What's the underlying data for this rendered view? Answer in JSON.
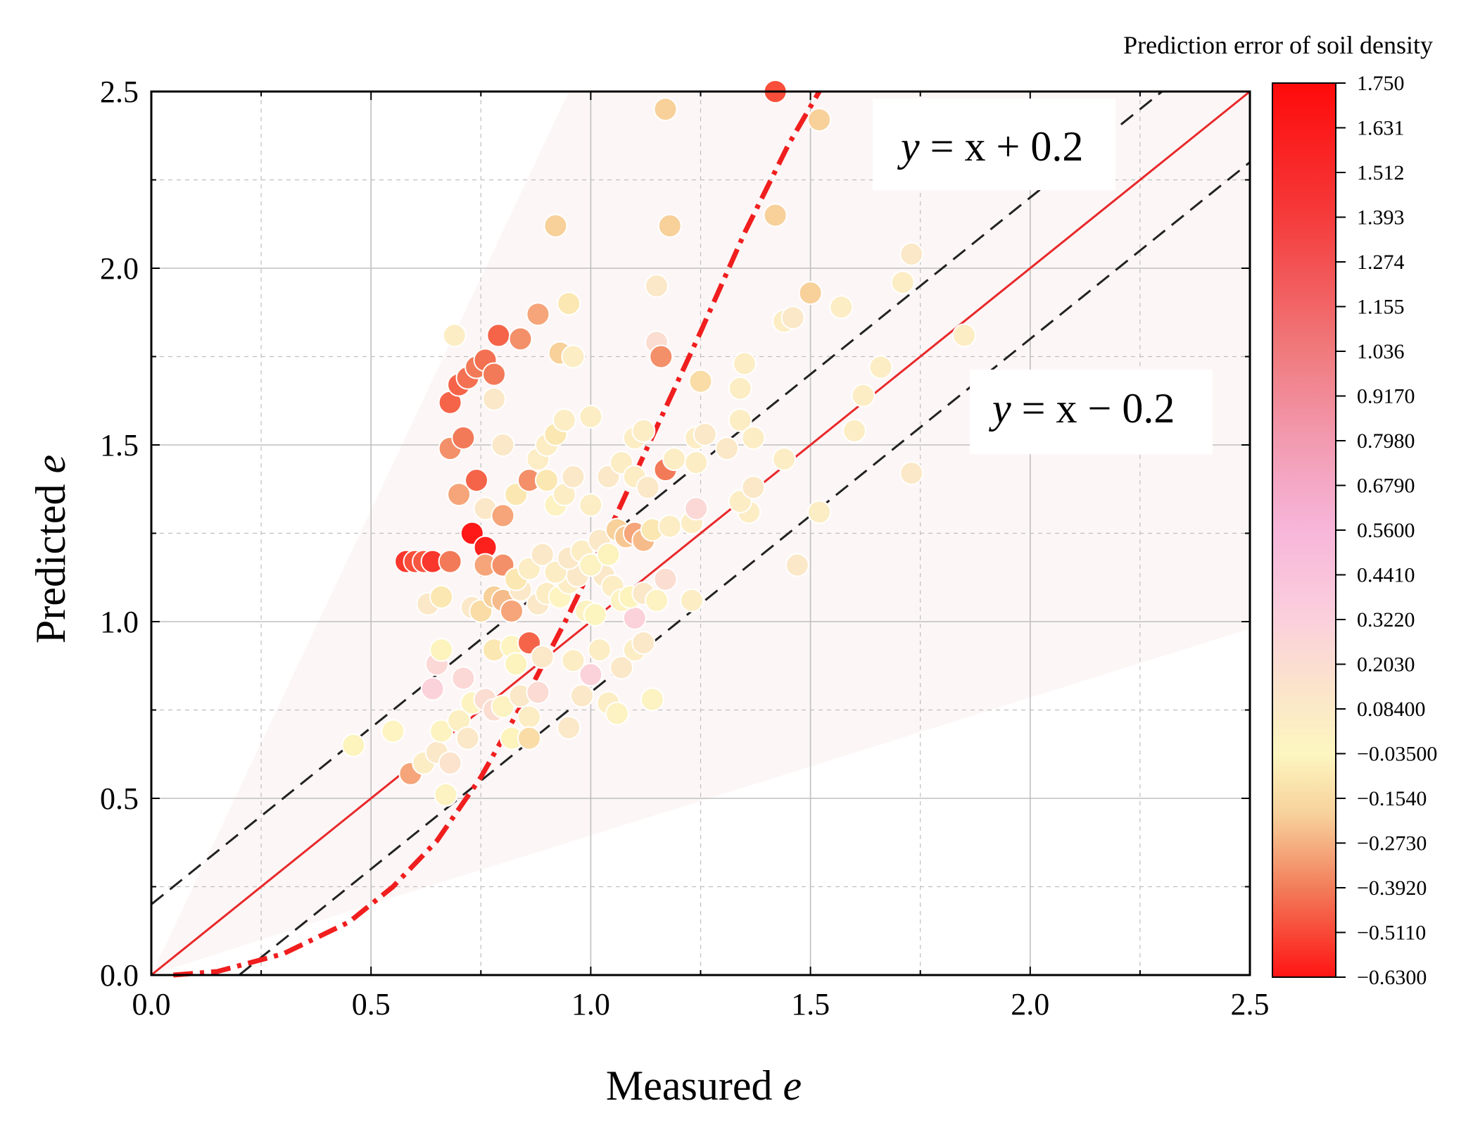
{
  "chart_data": {
    "type": "scatter",
    "xlabel": "Measured",
    "xlabel_var": "e",
    "ylabel": "Predicted",
    "ylabel_var": "e",
    "xlim": [
      0,
      2.5
    ],
    "ylim": [
      0,
      2.5
    ],
    "x_ticks": [
      "0.0",
      "0.5",
      "1.0",
      "1.5",
      "2.0",
      "2.5"
    ],
    "y_ticks": [
      "0.0",
      "0.5",
      "1.0",
      "1.5",
      "2.0",
      "2.5"
    ],
    "grid": true,
    "lines": [
      {
        "name": "y = x",
        "slope": 1,
        "intercept": 0,
        "style": "solid",
        "color": "#e8282a"
      },
      {
        "name": "y = x + 0.2",
        "slope": 1,
        "intercept": 0.2,
        "style": "dashed",
        "color": "#222222"
      },
      {
        "name": "y = x - 0.2",
        "slope": 1,
        "intercept": -0.2,
        "style": "dashed",
        "color": "#222222"
      }
    ],
    "trend_curve": [
      [
        0.05,
        0.0
      ],
      [
        0.15,
        0.01
      ],
      [
        0.3,
        0.06
      ],
      [
        0.45,
        0.15
      ],
      [
        0.55,
        0.25
      ],
      [
        0.65,
        0.38
      ],
      [
        0.75,
        0.56
      ],
      [
        0.85,
        0.78
      ],
      [
        0.95,
        1.02
      ],
      [
        1.05,
        1.28
      ],
      [
        1.15,
        1.55
      ],
      [
        1.25,
        1.82
      ],
      [
        1.35,
        2.1
      ],
      [
        1.45,
        2.35
      ],
      [
        1.52,
        2.5
      ]
    ],
    "annotations": [
      {
        "text_var": "y",
        "text_rest": " = x + 0.2"
      },
      {
        "text_var": "y",
        "text_rest": " = x − 0.2"
      }
    ],
    "colorbar": {
      "title": "Prediction error of soil density",
      "min": -0.63,
      "max": 1.75,
      "ticks": [
        "1.750",
        "1.631",
        "1.512",
        "1.393",
        "1.274",
        "1.155",
        "1.036",
        "0.9170",
        "0.7980",
        "0.6790",
        "0.5600",
        "0.4410",
        "0.3220",
        "0.2030",
        "0.08400",
        "−0.03500",
        "−0.1540",
        "−0.2730",
        "−0.3920",
        "−0.5110",
        "−0.6300"
      ],
      "stops": [
        {
          "v": 1.75,
          "color": "#ff0a0a"
        },
        {
          "v": 1.4,
          "color": "#f53a3a"
        },
        {
          "v": 1.05,
          "color": "#f0787a"
        },
        {
          "v": 0.8,
          "color": "#f29ab0"
        },
        {
          "v": 0.56,
          "color": "#f7b6da"
        },
        {
          "v": 0.32,
          "color": "#fbd0dc"
        },
        {
          "v": 0.1,
          "color": "#fbe8c8"
        },
        {
          "v": -0.035,
          "color": "#fdf6c0"
        },
        {
          "v": -0.2,
          "color": "#f7d09a"
        },
        {
          "v": -0.4,
          "color": "#f27a58"
        },
        {
          "v": -0.63,
          "color": "#ff1414"
        }
      ]
    },
    "points": [
      [
        0.46,
        0.65,
        -0.05
      ],
      [
        0.55,
        0.69,
        -0.02
      ],
      [
        0.59,
        0.57,
        -0.3
      ],
      [
        0.62,
        0.6,
        0.05
      ],
      [
        0.65,
        0.63,
        0.1
      ],
      [
        0.66,
        0.69,
        -0.01
      ],
      [
        0.67,
        0.51,
        0.0
      ],
      [
        0.68,
        0.6,
        0.15
      ],
      [
        0.7,
        0.72,
        0.02
      ],
      [
        0.72,
        0.67,
        0.1
      ],
      [
        0.73,
        0.77,
        -0.01
      ],
      [
        0.76,
        0.78,
        0.2
      ],
      [
        0.78,
        0.75,
        0.2
      ],
      [
        0.8,
        0.76,
        0.0
      ],
      [
        0.82,
        0.67,
        -0.05
      ],
      [
        0.84,
        0.79,
        0.1
      ],
      [
        0.86,
        0.73,
        0.05
      ],
      [
        0.88,
        0.8,
        0.22
      ],
      [
        0.86,
        0.67,
        -0.15
      ],
      [
        0.71,
        0.84,
        0.25
      ],
      [
        0.64,
        0.81,
        0.3
      ],
      [
        0.65,
        0.88,
        0.25
      ],
      [
        0.66,
        0.92,
        -0.05
      ],
      [
        0.78,
        0.92,
        -0.1
      ],
      [
        0.82,
        0.93,
        -0.02
      ],
      [
        0.83,
        0.88,
        -0.05
      ],
      [
        0.86,
        0.94,
        -0.45
      ],
      [
        0.89,
        0.9,
        0.1
      ],
      [
        0.96,
        0.89,
        0.05
      ],
      [
        0.98,
        0.79,
        0.1
      ],
      [
        1.0,
        0.85,
        0.3
      ],
      [
        1.02,
        0.92,
        0.05
      ],
      [
        1.04,
        0.77,
        0.05
      ],
      [
        1.06,
        0.74,
        0.0
      ],
      [
        1.07,
        0.87,
        0.1
      ],
      [
        1.1,
        0.92,
        0.05
      ],
      [
        1.12,
        0.94,
        0.1
      ],
      [
        1.14,
        0.78,
        0.0
      ],
      [
        1.1,
        1.01,
        0.3
      ],
      [
        0.95,
        0.7,
        0.1
      ],
      [
        0.63,
        1.05,
        0.1
      ],
      [
        0.66,
        1.07,
        -0.1
      ],
      [
        0.73,
        1.04,
        0.1
      ],
      [
        0.75,
        1.03,
        -0.15
      ],
      [
        0.78,
        1.07,
        -0.2
      ],
      [
        0.8,
        1.06,
        -0.25
      ],
      [
        0.82,
        1.03,
        -0.3
      ],
      [
        0.84,
        1.09,
        0.1
      ],
      [
        0.88,
        1.05,
        0.1
      ],
      [
        0.9,
        1.08,
        0.05
      ],
      [
        0.93,
        1.07,
        -0.02
      ],
      [
        0.95,
        1.11,
        0.05
      ],
      [
        0.97,
        1.13,
        0.1
      ],
      [
        0.99,
        1.03,
        0.0
      ],
      [
        1.01,
        1.02,
        -0.03
      ],
      [
        1.03,
        1.13,
        0.1
      ],
      [
        1.05,
        1.1,
        0.05
      ],
      [
        1.07,
        1.06,
        0.0
      ],
      [
        1.09,
        1.07,
        -0.05
      ],
      [
        1.12,
        1.08,
        0.1
      ],
      [
        1.15,
        1.06,
        0.0
      ],
      [
        1.17,
        1.12,
        0.2
      ],
      [
        1.23,
        1.06,
        0.05
      ],
      [
        0.58,
        1.17,
        -0.55
      ],
      [
        0.6,
        1.17,
        -0.5
      ],
      [
        0.62,
        1.17,
        -0.48
      ],
      [
        0.64,
        1.17,
        -0.55
      ],
      [
        0.68,
        1.17,
        -0.4
      ],
      [
        0.73,
        1.25,
        -0.62
      ],
      [
        0.76,
        1.21,
        -0.6
      ],
      [
        0.76,
        1.16,
        -0.3
      ],
      [
        0.8,
        1.16,
        -0.35
      ],
      [
        0.83,
        1.12,
        -0.1
      ],
      [
        0.86,
        1.15,
        0.05
      ],
      [
        0.89,
        1.19,
        0.1
      ],
      [
        0.92,
        1.14,
        0.05
      ],
      [
        0.95,
        1.18,
        0.1
      ],
      [
        0.98,
        1.2,
        0.05
      ],
      [
        1.0,
        1.16,
        0.0
      ],
      [
        1.02,
        1.23,
        0.1
      ],
      [
        1.04,
        1.19,
        -0.05
      ],
      [
        1.06,
        1.26,
        -0.2
      ],
      [
        1.08,
        1.24,
        -0.22
      ],
      [
        1.1,
        1.25,
        -0.3
      ],
      [
        1.12,
        1.23,
        -0.25
      ],
      [
        1.14,
        1.26,
        -0.1
      ],
      [
        1.18,
        1.27,
        0.05
      ],
      [
        1.23,
        1.28,
        0.05
      ],
      [
        1.24,
        1.32,
        0.25
      ],
      [
        1.36,
        1.31,
        0.05
      ],
      [
        1.52,
        1.31,
        0.05
      ],
      [
        0.7,
        1.36,
        -0.3
      ],
      [
        0.74,
        1.4,
        -0.45
      ],
      [
        0.76,
        1.32,
        0.1
      ],
      [
        0.8,
        1.3,
        -0.3
      ],
      [
        0.83,
        1.36,
        -0.1
      ],
      [
        0.86,
        1.4,
        -0.35
      ],
      [
        0.88,
        1.46,
        0.05
      ],
      [
        0.9,
        1.4,
        -0.1
      ],
      [
        0.92,
        1.33,
        0.0
      ],
      [
        0.94,
        1.36,
        0.05
      ],
      [
        0.96,
        1.41,
        0.1
      ],
      [
        1.0,
        1.33,
        0.05
      ],
      [
        1.04,
        1.41,
        0.1
      ],
      [
        1.07,
        1.45,
        0.05
      ],
      [
        1.1,
        1.41,
        0.05
      ],
      [
        1.13,
        1.38,
        0.1
      ],
      [
        1.17,
        1.43,
        -0.4
      ],
      [
        1.19,
        1.46,
        0.05
      ],
      [
        1.24,
        1.45,
        0.05
      ],
      [
        1.34,
        1.34,
        0.05
      ],
      [
        1.37,
        1.38,
        0.1
      ],
      [
        1.44,
        1.46,
        0.05
      ],
      [
        1.47,
        1.16,
        0.1
      ],
      [
        1.73,
        1.42,
        0.1
      ],
      [
        0.68,
        1.49,
        -0.35
      ],
      [
        0.71,
        1.52,
        -0.4
      ],
      [
        0.8,
        1.5,
        0.1
      ],
      [
        0.9,
        1.5,
        0.05
      ],
      [
        0.92,
        1.53,
        -0.1
      ],
      [
        0.94,
        1.57,
        0.05
      ],
      [
        1.0,
        1.58,
        0.05
      ],
      [
        1.1,
        1.52,
        0.05
      ],
      [
        1.12,
        1.54,
        0.05
      ],
      [
        1.24,
        1.52,
        0.05
      ],
      [
        1.26,
        1.53,
        0.1
      ],
      [
        1.31,
        1.49,
        0.1
      ],
      [
        1.34,
        1.57,
        0.05
      ],
      [
        1.37,
        1.52,
        0.05
      ],
      [
        1.6,
        1.54,
        0.05
      ],
      [
        0.68,
        1.62,
        -0.45
      ],
      [
        0.7,
        1.67,
        -0.45
      ],
      [
        0.72,
        1.69,
        -0.42
      ],
      [
        0.74,
        1.72,
        -0.4
      ],
      [
        0.76,
        1.74,
        -0.42
      ],
      [
        0.78,
        1.7,
        -0.4
      ],
      [
        0.79,
        1.81,
        -0.45
      ],
      [
        0.84,
        1.8,
        -0.35
      ],
      [
        0.69,
        1.81,
        0.05
      ],
      [
        0.78,
        1.63,
        0.1
      ],
      [
        0.88,
        1.87,
        -0.3
      ],
      [
        0.93,
        1.76,
        -0.2
      ],
      [
        0.95,
        1.9,
        -0.1
      ],
      [
        0.96,
        1.75,
        0.05
      ],
      [
        1.15,
        1.79,
        0.2
      ],
      [
        1.16,
        1.75,
        -0.35
      ],
      [
        1.25,
        1.68,
        -0.15
      ],
      [
        1.34,
        1.66,
        0.05
      ],
      [
        1.35,
        1.73,
        0.05
      ],
      [
        1.44,
        1.85,
        0.05
      ],
      [
        1.46,
        1.86,
        0.1
      ],
      [
        1.5,
        1.93,
        -0.2
      ],
      [
        1.57,
        1.89,
        0.05
      ],
      [
        1.62,
        1.64,
        0.05
      ],
      [
        1.66,
        1.72,
        0.05
      ],
      [
        1.71,
        1.96,
        0.05
      ],
      [
        1.73,
        2.04,
        0.1
      ],
      [
        1.85,
        1.81,
        0.05
      ],
      [
        0.92,
        2.12,
        -0.2
      ],
      [
        1.15,
        1.95,
        0.1
      ],
      [
        1.18,
        2.12,
        -0.2
      ],
      [
        1.42,
        2.15,
        -0.2
      ],
      [
        1.17,
        2.45,
        -0.2
      ],
      [
        1.52,
        2.42,
        -0.2
      ],
      [
        1.42,
        2.5,
        -0.5
      ]
    ]
  }
}
